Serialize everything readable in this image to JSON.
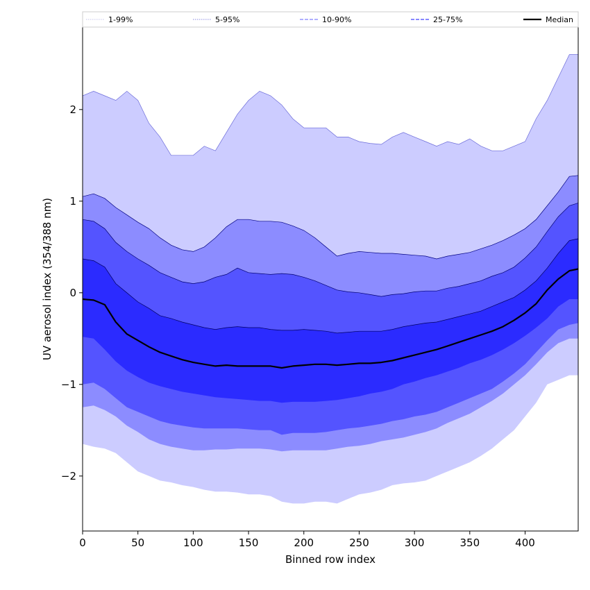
{
  "chart_data": {
    "type": "area",
    "title": "",
    "xlabel": "Binned row index",
    "ylabel": "UV aerosol index (354/388 nm)",
    "xlim": [
      0,
      448
    ],
    "ylim": [
      -2.6,
      2.9
    ],
    "xticks": [
      0,
      50,
      100,
      150,
      200,
      250,
      300,
      350,
      400
    ],
    "yticks": [
      2,
      1,
      0,
      -1,
      -2
    ],
    "ytick_labels": [
      "2",
      "1",
      "0",
      "−1",
      "−2"
    ],
    "grid": false,
    "legend_position": "top",
    "legend": [
      {
        "label": "1-99%",
        "style": "dotted",
        "color": "#d0d0f0"
      },
      {
        "label": "5-95%",
        "style": "dotted",
        "color": "#a0a0e8"
      },
      {
        "label": "10-90%",
        "style": "dashed",
        "color": "#8080ff"
      },
      {
        "label": "25-75%",
        "style": "dashed",
        "color": "#4040ff"
      },
      {
        "label": "Median",
        "style": "solid",
        "color": "#000000"
      }
    ],
    "x": [
      0,
      10,
      20,
      30,
      40,
      50,
      60,
      70,
      80,
      90,
      100,
      110,
      120,
      130,
      140,
      150,
      160,
      170,
      180,
      190,
      200,
      210,
      220,
      230,
      240,
      250,
      260,
      270,
      280,
      290,
      300,
      310,
      320,
      330,
      340,
      350,
      360,
      370,
      380,
      390,
      400,
      410,
      420,
      430,
      440,
      448
    ],
    "bands": [
      {
        "name": "1-99%",
        "color": "#ccccff",
        "upper": [
          2.15,
          2.2,
          2.15,
          2.1,
          2.2,
          2.1,
          1.85,
          1.7,
          1.5,
          1.5,
          1.5,
          1.6,
          1.55,
          1.75,
          1.95,
          2.1,
          2.2,
          2.15,
          2.05,
          1.9,
          1.8,
          1.8,
          1.8,
          1.7,
          1.7,
          1.65,
          1.63,
          1.62,
          1.7,
          1.75,
          1.7,
          1.65,
          1.6,
          1.65,
          1.62,
          1.68,
          1.6,
          1.55,
          1.55,
          1.6,
          1.65,
          1.9,
          2.1,
          2.35,
          2.6,
          2.6
        ],
        "lower": [
          -1.65,
          -1.68,
          -1.7,
          -1.75,
          -1.85,
          -1.95,
          -2.0,
          -2.05,
          -2.07,
          -2.1,
          -2.12,
          -2.15,
          -2.17,
          -2.17,
          -2.18,
          -2.2,
          -2.2,
          -2.22,
          -2.28,
          -2.3,
          -2.3,
          -2.28,
          -2.28,
          -2.3,
          -2.25,
          -2.2,
          -2.18,
          -2.15,
          -2.1,
          -2.08,
          -2.07,
          -2.05,
          -2.0,
          -1.95,
          -1.9,
          -1.85,
          -1.78,
          -1.7,
          -1.6,
          -1.5,
          -1.35,
          -1.2,
          -1.0,
          -0.95,
          -0.9,
          -0.9
        ]
      },
      {
        "name": "5-95%",
        "color": "#8c8cff",
        "upper": [
          1.05,
          1.08,
          1.03,
          0.93,
          0.85,
          0.77,
          0.7,
          0.6,
          0.52,
          0.47,
          0.45,
          0.5,
          0.6,
          0.72,
          0.8,
          0.8,
          0.78,
          0.78,
          0.77,
          0.73,
          0.68,
          0.6,
          0.5,
          0.4,
          0.43,
          0.45,
          0.44,
          0.43,
          0.43,
          0.42,
          0.41,
          0.4,
          0.37,
          0.4,
          0.42,
          0.44,
          0.48,
          0.52,
          0.57,
          0.63,
          0.7,
          0.8,
          0.95,
          1.1,
          1.27,
          1.28
        ],
        "lower": [
          -1.25,
          -1.23,
          -1.28,
          -1.35,
          -1.45,
          -1.52,
          -1.6,
          -1.65,
          -1.68,
          -1.7,
          -1.72,
          -1.72,
          -1.71,
          -1.71,
          -1.7,
          -1.7,
          -1.7,
          -1.71,
          -1.73,
          -1.72,
          -1.72,
          -1.72,
          -1.72,
          -1.7,
          -1.68,
          -1.67,
          -1.65,
          -1.62,
          -1.6,
          -1.58,
          -1.55,
          -1.52,
          -1.48,
          -1.42,
          -1.37,
          -1.32,
          -1.25,
          -1.18,
          -1.1,
          -1.0,
          -0.9,
          -0.78,
          -0.65,
          -0.55,
          -0.5,
          -0.5
        ]
      },
      {
        "name": "10-90%",
        "color": "#5454ff",
        "upper": [
          0.8,
          0.78,
          0.7,
          0.55,
          0.45,
          0.37,
          0.3,
          0.22,
          0.17,
          0.12,
          0.1,
          0.12,
          0.17,
          0.2,
          0.27,
          0.22,
          0.21,
          0.2,
          0.21,
          0.2,
          0.17,
          0.13,
          0.08,
          0.03,
          0.01,
          0.0,
          -0.02,
          -0.04,
          -0.02,
          -0.01,
          0.01,
          0.02,
          0.02,
          0.05,
          0.07,
          0.1,
          0.13,
          0.18,
          0.22,
          0.28,
          0.38,
          0.5,
          0.67,
          0.83,
          0.95,
          0.98
        ],
        "lower": [
          -1.0,
          -0.98,
          -1.05,
          -1.15,
          -1.25,
          -1.3,
          -1.35,
          -1.4,
          -1.43,
          -1.45,
          -1.47,
          -1.48,
          -1.48,
          -1.48,
          -1.48,
          -1.49,
          -1.5,
          -1.5,
          -1.55,
          -1.53,
          -1.53,
          -1.53,
          -1.52,
          -1.5,
          -1.48,
          -1.47,
          -1.45,
          -1.43,
          -1.4,
          -1.38,
          -1.35,
          -1.33,
          -1.3,
          -1.25,
          -1.2,
          -1.15,
          -1.1,
          -1.05,
          -0.97,
          -0.88,
          -0.78,
          -0.65,
          -0.52,
          -0.4,
          -0.35,
          -0.33
        ]
      },
      {
        "name": "25-75%",
        "color": "#2b2bff",
        "upper": [
          0.37,
          0.35,
          0.28,
          0.1,
          0.0,
          -0.1,
          -0.17,
          -0.25,
          -0.28,
          -0.32,
          -0.35,
          -0.38,
          -0.4,
          -0.38,
          -0.37,
          -0.38,
          -0.38,
          -0.4,
          -0.41,
          -0.41,
          -0.4,
          -0.41,
          -0.42,
          -0.44,
          -0.43,
          -0.42,
          -0.42,
          -0.42,
          -0.4,
          -0.37,
          -0.35,
          -0.33,
          -0.32,
          -0.29,
          -0.26,
          -0.23,
          -0.2,
          -0.15,
          -0.1,
          -0.05,
          0.03,
          0.13,
          0.27,
          0.43,
          0.57,
          0.59
        ],
        "lower": [
          -0.48,
          -0.5,
          -0.62,
          -0.75,
          -0.85,
          -0.92,
          -0.98,
          -1.02,
          -1.05,
          -1.08,
          -1.1,
          -1.12,
          -1.14,
          -1.15,
          -1.16,
          -1.17,
          -1.18,
          -1.18,
          -1.2,
          -1.19,
          -1.19,
          -1.19,
          -1.18,
          -1.17,
          -1.15,
          -1.13,
          -1.1,
          -1.08,
          -1.05,
          -1.0,
          -0.97,
          -0.93,
          -0.9,
          -0.86,
          -0.82,
          -0.77,
          -0.73,
          -0.68,
          -0.62,
          -0.55,
          -0.47,
          -0.38,
          -0.28,
          -0.15,
          -0.07,
          -0.07
        ]
      }
    ],
    "median": {
      "name": "Median",
      "color": "#000000",
      "values": [
        -0.07,
        -0.08,
        -0.13,
        -0.32,
        -0.45,
        -0.52,
        -0.59,
        -0.65,
        -0.69,
        -0.73,
        -0.76,
        -0.78,
        -0.8,
        -0.79,
        -0.8,
        -0.8,
        -0.8,
        -0.8,
        -0.82,
        -0.8,
        -0.79,
        -0.78,
        -0.78,
        -0.79,
        -0.78,
        -0.77,
        -0.77,
        -0.76,
        -0.74,
        -0.71,
        -0.68,
        -0.65,
        -0.62,
        -0.58,
        -0.54,
        -0.5,
        -0.46,
        -0.42,
        -0.37,
        -0.3,
        -0.22,
        -0.12,
        0.03,
        0.15,
        0.24,
        0.26
      ]
    }
  }
}
